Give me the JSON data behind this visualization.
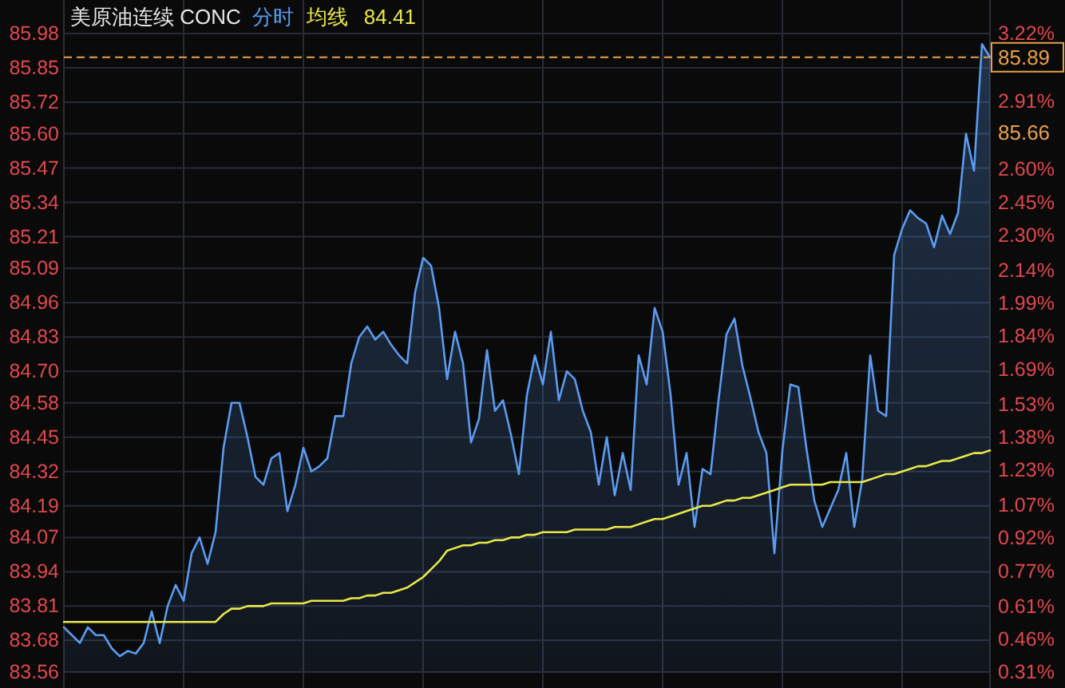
{
  "chart_data": {
    "type": "area",
    "title": "美原油连续 CONC",
    "grid": true,
    "tick_labels": "y",
    "marker": "none",
    "categories": [
      null,
      null,
      null,
      null,
      null,
      null,
      null,
      null,
      null,
      null,
      null,
      null,
      null,
      null,
      null,
      null,
      null,
      null,
      null,
      null,
      null,
      null,
      null,
      null,
      null,
      null,
      null,
      null,
      null,
      null,
      null,
      null,
      null,
      null,
      null,
      null,
      null,
      null,
      null,
      null,
      null,
      null,
      null,
      null,
      null,
      null,
      null,
      null,
      null,
      null,
      null,
      null,
      null,
      null,
      null,
      null,
      null,
      null,
      null,
      null,
      null,
      null,
      null,
      null,
      null,
      null,
      null,
      null,
      null,
      null,
      null,
      null,
      null,
      null,
      null,
      null,
      null,
      null,
      null,
      null,
      null,
      null,
      null,
      null,
      null,
      null,
      null,
      null,
      null,
      null,
      null,
      null,
      null,
      null,
      null,
      null,
      null,
      null,
      null,
      null,
      null,
      null,
      null,
      null,
      null,
      null,
      null,
      null,
      null,
      null,
      null,
      null,
      null,
      null,
      null,
      null,
      null
    ],
    "ylim": [
      83.56,
      85.98
    ],
    "yticks": [
      85.98,
      85.85,
      85.72,
      {
        "value": 85.6,
        "label": "85.60"
      },
      85.47,
      85.34,
      85.21,
      85.09,
      84.96,
      84.83,
      {
        "value": 84.7,
        "label": "84.70"
      },
      84.58,
      84.45,
      84.32,
      84.19,
      84.07,
      83.94,
      83.81,
      83.68,
      83.56
    ],
    "y2lim": [
      0.31,
      3.22
    ],
    "y2ticks": [
      {
        "value": 3.22,
        "label": "3.22%"
      },
      {
        "value": 2.91,
        "label": "2.91%"
      },
      {
        "value": 2.6,
        "label": "2.60%"
      },
      {
        "value": 2.45,
        "label": "2.45%"
      },
      {
        "value": 2.3,
        "label": "2.30%"
      },
      {
        "value": 2.14,
        "label": "2.14%"
      },
      {
        "value": 1.99,
        "label": "1.99%"
      },
      {
        "value": 1.84,
        "label": "1.84%"
      },
      {
        "value": 1.69,
        "label": "1.69%"
      },
      {
        "value": 1.53,
        "label": "1.53%"
      },
      {
        "value": 1.38,
        "label": "1.38%"
      },
      {
        "value": 1.23,
        "label": "1.23%"
      },
      {
        "value": 1.07,
        "label": "1.07%"
      },
      {
        "value": 0.92,
        "label": "0.92%"
      },
      {
        "value": 0.77,
        "label": "0.77%"
      },
      {
        "value": 0.61,
        "label": "0.61%"
      },
      {
        "value": 0.46,
        "label": "0.46%"
      },
      {
        "value": 0.31,
        "label": "0.31%"
      }
    ],
    "ref_lines": [
      {
        "axis": "y",
        "value": 85.89,
        "label": "85.89",
        "color": "#e8a04a",
        "line_style": "dashed"
      }
    ],
    "annotations": [
      "84.41",
      "85.66"
    ],
    "series": [
      {
        "name": "分时",
        "color": "#5b9bf0",
        "values": [
          83.73,
          83.7,
          83.67,
          83.73,
          83.7,
          83.7,
          83.65,
          83.62,
          83.64,
          83.63,
          83.67,
          83.79,
          83.67,
          83.81,
          83.89,
          83.83,
          84.01,
          84.07,
          83.97,
          84.09,
          84.41,
          84.58,
          84.58,
          84.45,
          84.3,
          84.27,
          84.37,
          84.39,
          84.17,
          84.27,
          84.41,
          84.32,
          84.34,
          84.37,
          84.53,
          84.53,
          84.73,
          84.83,
          84.87,
          84.82,
          84.85,
          84.8,
          84.76,
          84.73,
          85.0,
          85.13,
          85.1,
          84.94,
          84.67,
          84.85,
          84.73,
          84.43,
          84.52,
          84.78,
          84.55,
          84.59,
          84.46,
          84.31,
          84.61,
          84.76,
          84.65,
          84.85,
          84.59,
          84.7,
          84.67,
          84.55,
          84.47,
          84.27,
          84.45,
          84.23,
          84.39,
          84.25,
          84.76,
          84.65,
          84.94,
          84.85,
          84.61,
          84.27,
          84.39,
          84.11,
          84.33,
          84.31,
          84.59,
          84.84,
          84.9,
          84.72,
          84.6,
          84.47,
          84.39,
          84.01,
          84.4,
          84.65,
          84.64,
          84.41,
          84.21,
          84.11,
          84.18,
          84.25,
          84.39,
          84.11,
          84.29,
          84.76,
          84.55,
          84.53,
          85.14,
          85.24,
          85.31,
          85.28,
          85.26,
          85.17,
          85.29,
          85.22,
          85.3,
          85.6,
          85.46,
          85.94,
          85.89
        ]
      },
      {
        "name": "均线",
        "type": "line",
        "color": "#e8e84a",
        "values": [
          83.75,
          83.75,
          83.75,
          83.75,
          83.75,
          83.75,
          83.75,
          83.75,
          83.75,
          83.75,
          83.75,
          83.75,
          83.75,
          83.75,
          83.75,
          83.75,
          83.75,
          83.75,
          83.75,
          83.75,
          83.78,
          83.8,
          83.8,
          83.81,
          83.81,
          83.81,
          83.82,
          83.82,
          83.82,
          83.82,
          83.82,
          83.83,
          83.83,
          83.83,
          83.83,
          83.83,
          83.84,
          83.84,
          83.85,
          83.85,
          83.86,
          83.86,
          83.87,
          83.88,
          83.9,
          83.92,
          83.95,
          83.98,
          84.02,
          84.03,
          84.04,
          84.04,
          84.05,
          84.05,
          84.06,
          84.06,
          84.07,
          84.07,
          84.08,
          84.08,
          84.09,
          84.09,
          84.09,
          84.09,
          84.1,
          84.1,
          84.1,
          84.1,
          84.1,
          84.11,
          84.11,
          84.11,
          84.12,
          84.13,
          84.14,
          84.14,
          84.15,
          84.16,
          84.17,
          84.18,
          84.19,
          84.19,
          84.2,
          84.21,
          84.21,
          84.22,
          84.22,
          84.23,
          84.24,
          84.25,
          84.26,
          84.27,
          84.27,
          84.27,
          84.27,
          84.27,
          84.28,
          84.28,
          84.28,
          84.28,
          84.28,
          84.29,
          84.3,
          84.31,
          84.31,
          84.32,
          84.33,
          84.34,
          84.34,
          84.35,
          84.36,
          84.36,
          84.37,
          84.38,
          84.39,
          84.39,
          84.4
        ]
      }
    ]
  }
}
